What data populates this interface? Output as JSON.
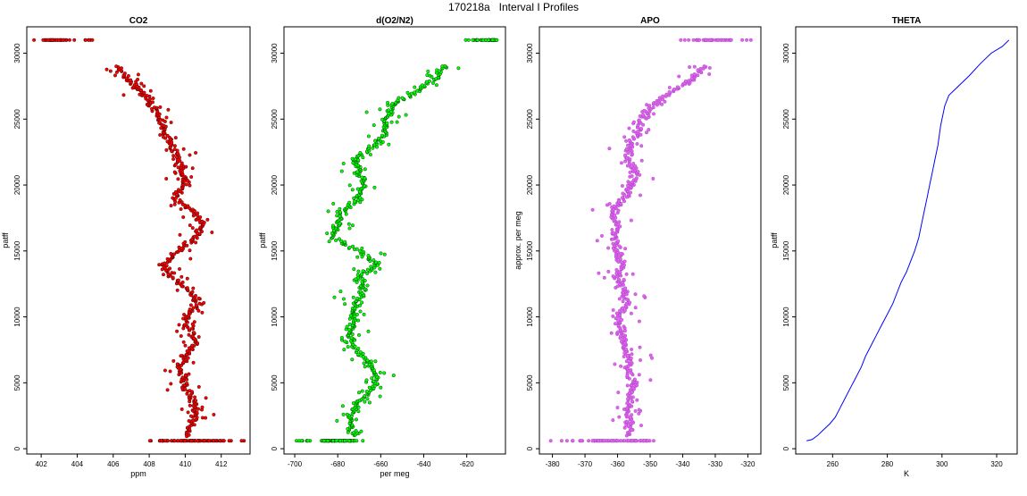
{
  "suptitle": "170218a   Interval I Profiles",
  "chart_data": [
    {
      "type": "scatter",
      "title": "CO2",
      "xlabel": "ppm",
      "ylabel": "patff",
      "xlim": [
        401.2,
        413.6
      ],
      "ylim": [
        -400,
        32000
      ],
      "xticks": [
        402,
        404,
        406,
        408,
        410,
        412
      ],
      "yticks": [
        0,
        5000,
        10000,
        15000,
        20000,
        25000,
        30000
      ],
      "color": "#ff0000",
      "marker_edge": "#000000",
      "top_row": {
        "y": 31000,
        "x_range": [
          401.5,
          405.0
        ],
        "cluster": [
          402.0,
          403.4
        ]
      },
      "bottom_row": {
        "y": 600,
        "x_range": [
          408.0,
          413.3
        ],
        "cluster": [
          408.5,
          412.0
        ]
      },
      "profile": [
        {
          "y": 29000,
          "x": 406.2
        },
        {
          "y": 28000,
          "x": 406.8
        },
        {
          "y": 27000,
          "x": 407.6
        },
        {
          "y": 26000,
          "x": 408.2
        },
        {
          "y": 25000,
          "x": 408.6
        },
        {
          "y": 24000,
          "x": 408.9
        },
        {
          "y": 23000,
          "x": 409.2
        },
        {
          "y": 22000,
          "x": 409.6
        },
        {
          "y": 21000,
          "x": 409.8
        },
        {
          "y": 20000,
          "x": 410.0
        },
        {
          "y": 19000,
          "x": 409.4
        },
        {
          "y": 18000,
          "x": 410.4
        },
        {
          "y": 17000,
          "x": 411.0
        },
        {
          "y": 16000,
          "x": 410.6
        },
        {
          "y": 15000,
          "x": 409.6
        },
        {
          "y": 14000,
          "x": 408.8
        },
        {
          "y": 13000,
          "x": 409.3
        },
        {
          "y": 12000,
          "x": 410.2
        },
        {
          "y": 11000,
          "x": 410.8
        },
        {
          "y": 10000,
          "x": 410.0
        },
        {
          "y": 9000,
          "x": 410.3
        },
        {
          "y": 8000,
          "x": 410.6
        },
        {
          "y": 7000,
          "x": 410.0
        },
        {
          "y": 6000,
          "x": 409.7
        },
        {
          "y": 5000,
          "x": 409.9
        },
        {
          "y": 4000,
          "x": 410.3
        },
        {
          "y": 3000,
          "x": 410.6
        },
        {
          "y": 2000,
          "x": 410.5
        },
        {
          "y": 1000,
          "x": 410.0
        }
      ]
    },
    {
      "type": "scatter",
      "title": "d(O2/N2)",
      "xlabel": "per meg",
      "ylabel": "patff",
      "xlim": [
        -705,
        -602
      ],
      "ylim": [
        -400,
        32000
      ],
      "xticks": [
        -700,
        -680,
        -660,
        -640,
        -620
      ],
      "yticks": [
        0,
        5000,
        10000,
        15000,
        20000,
        25000,
        30000
      ],
      "color": "#00ff00",
      "marker_edge": "#000000",
      "top_row": {
        "y": 31000,
        "x_range": [
          -622,
          -605
        ],
        "cluster": [
          -616,
          -606
        ]
      },
      "bottom_row": {
        "y": 600,
        "x_range": [
          -700,
          -668
        ],
        "cluster": [
          -688,
          -672
        ]
      },
      "profile": [
        {
          "y": 29000,
          "x": -630
        },
        {
          "y": 28000,
          "x": -635
        },
        {
          "y": 27000,
          "x": -645
        },
        {
          "y": 26000,
          "x": -655
        },
        {
          "y": 25000,
          "x": -658
        },
        {
          "y": 24000,
          "x": -658
        },
        {
          "y": 23000,
          "x": -663
        },
        {
          "y": 22000,
          "x": -672
        },
        {
          "y": 21000,
          "x": -670
        },
        {
          "y": 20000,
          "x": -668
        },
        {
          "y": 19000,
          "x": -670
        },
        {
          "y": 18000,
          "x": -678
        },
        {
          "y": 17000,
          "x": -680
        },
        {
          "y": 16000,
          "x": -682
        },
        {
          "y": 15000,
          "x": -670
        },
        {
          "y": 14000,
          "x": -662
        },
        {
          "y": 13000,
          "x": -670
        },
        {
          "y": 12000,
          "x": -668
        },
        {
          "y": 11000,
          "x": -672
        },
        {
          "y": 10000,
          "x": -673
        },
        {
          "y": 9000,
          "x": -674
        },
        {
          "y": 8000,
          "x": -674
        },
        {
          "y": 7000,
          "x": -668
        },
        {
          "y": 6000,
          "x": -663
        },
        {
          "y": 5000,
          "x": -662
        },
        {
          "y": 4000,
          "x": -667
        },
        {
          "y": 3000,
          "x": -673
        },
        {
          "y": 2000,
          "x": -674
        },
        {
          "y": 1000,
          "x": -673
        }
      ]
    },
    {
      "type": "scatter",
      "title": "APO",
      "xlabel": "",
      "ylabel": "approx. per meg",
      "xlim": [
        -384,
        -316
      ],
      "ylim": [
        -400,
        32000
      ],
      "xticks": [
        -380,
        -370,
        -360,
        -350,
        -340,
        -330,
        -320
      ],
      "yticks": [
        0,
        5000,
        10000,
        15000,
        20000,
        25000,
        30000
      ],
      "color": "#e066e6",
      "marker_edge": "#9933cc",
      "top_row": {
        "y": 31000,
        "x_range": [
          -341,
          -318
        ],
        "cluster": [
          -336,
          -325
        ]
      },
      "bottom_row": {
        "y": 600,
        "x_range": [
          -382,
          -346
        ],
        "cluster": [
          -368,
          -350
        ]
      },
      "profile": [
        {
          "y": 29000,
          "x": -333
        },
        {
          "y": 28000,
          "x": -337
        },
        {
          "y": 27000,
          "x": -344
        },
        {
          "y": 26000,
          "x": -350
        },
        {
          "y": 25000,
          "x": -352
        },
        {
          "y": 24000,
          "x": -354
        },
        {
          "y": 23000,
          "x": -356
        },
        {
          "y": 22000,
          "x": -357
        },
        {
          "y": 21000,
          "x": -354
        },
        {
          "y": 20000,
          "x": -356
        },
        {
          "y": 19000,
          "x": -358
        },
        {
          "y": 18000,
          "x": -362
        },
        {
          "y": 17000,
          "x": -360
        },
        {
          "y": 16000,
          "x": -361
        },
        {
          "y": 15000,
          "x": -360
        },
        {
          "y": 14000,
          "x": -359
        },
        {
          "y": 13000,
          "x": -360
        },
        {
          "y": 12000,
          "x": -358
        },
        {
          "y": 11000,
          "x": -357
        },
        {
          "y": 10000,
          "x": -360
        },
        {
          "y": 9000,
          "x": -359
        },
        {
          "y": 8000,
          "x": -358
        },
        {
          "y": 7000,
          "x": -356
        },
        {
          "y": 6000,
          "x": -357
        },
        {
          "y": 5000,
          "x": -355
        },
        {
          "y": 4000,
          "x": -356
        },
        {
          "y": 3000,
          "x": -357
        },
        {
          "y": 2000,
          "x": -356
        },
        {
          "y": 1000,
          "x": -357
        }
      ]
    },
    {
      "type": "line",
      "title": "THETA",
      "xlabel": "K",
      "ylabel": "patff",
      "xlim": [
        246.5,
        327.5
      ],
      "ylim": [
        -400,
        32000
      ],
      "xticks": [
        260,
        280,
        300,
        320
      ],
      "yticks": [
        0,
        5000,
        10000,
        15000,
        20000,
        25000,
        30000
      ],
      "color": "#0000ff",
      "x": [
        250.5,
        252.5,
        254.5,
        256.5,
        259.0,
        261.0,
        262.5,
        264.5,
        266.5,
        268.5,
        270.5,
        272.0,
        274.0,
        276.0,
        278.0,
        280.0,
        282.0,
        283.5,
        285.0,
        287.0,
        288.5,
        290.0,
        291.5,
        292.5,
        293.5,
        294.5,
        295.5,
        296.5,
        297.5,
        298.5,
        299.5,
        301.0,
        302.5,
        306.0,
        310.0,
        314.0,
        318.0,
        322.0,
        324.5
      ],
      "y": [
        600,
        700,
        1000,
        1400,
        1900,
        2400,
        3000,
        3800,
        4600,
        5400,
        6200,
        7000,
        7800,
        8600,
        9400,
        10200,
        11000,
        11800,
        12600,
        13400,
        14200,
        15000,
        16000,
        17000,
        18000,
        19000,
        20000,
        21000,
        22000,
        23000,
        24500,
        26000,
        26800,
        27500,
        28300,
        29200,
        30000,
        30500,
        31000
      ]
    }
  ]
}
